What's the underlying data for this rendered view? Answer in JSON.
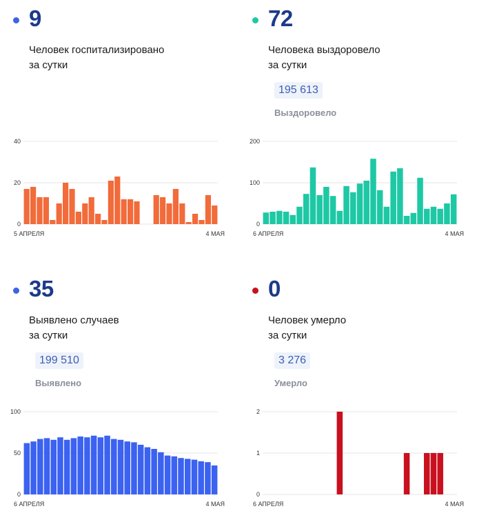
{
  "panels": [
    {
      "id": "hospitalized",
      "value": "9",
      "caption_line1": "Человек госпитализировано",
      "caption_line2": "за сутки",
      "total": null,
      "total_label": null,
      "color": "#f26b3a",
      "dot_color": "#3f63e0"
    },
    {
      "id": "recovered",
      "value": "72",
      "caption_line1": "Человека выздоровело",
      "caption_line2": "за сутки",
      "total": "195 613",
      "total_label": "Выздоровело",
      "color": "#1ec8a5",
      "dot_color": "#1ec8a5"
    },
    {
      "id": "cases",
      "value": "35",
      "caption_line1": "Выявлено случаев",
      "caption_line2": "за сутки",
      "total": "199 510",
      "total_label": "Выявлено",
      "color": "#3b62f0",
      "dot_color": "#3f63e0"
    },
    {
      "id": "deaths",
      "value": "0",
      "caption_line1": "Человек умерло",
      "caption_line2": "за сутки",
      "total": "3 276",
      "total_label": "Умерло",
      "color": "#c8101e",
      "dot_color": "#c8101e"
    }
  ],
  "chart_data": [
    {
      "type": "bar",
      "x_start_label": "5 АПРЕЛЯ",
      "x_end_label": "4 МАЯ",
      "yticks": [
        0,
        20,
        40
      ],
      "ylim": [
        0,
        40
      ],
      "values": [
        17,
        18,
        13,
        13,
        2,
        10,
        20,
        17,
        6,
        10,
        13,
        5,
        2,
        21,
        23,
        12,
        12,
        11,
        null,
        null,
        14,
        13,
        10,
        17,
        10,
        1,
        5,
        2,
        14,
        9
      ],
      "grid": true
    },
    {
      "type": "bar",
      "x_start_label": "6 АПРЕЛЯ",
      "x_end_label": "4 МАЯ",
      "yticks": [
        0,
        100,
        200
      ],
      "ylim": [
        0,
        200
      ],
      "values": [
        28,
        30,
        32,
        30,
        22,
        42,
        73,
        137,
        70,
        90,
        68,
        32,
        92,
        77,
        98,
        105,
        158,
        82,
        42,
        127,
        135,
        20,
        27,
        112,
        37,
        42,
        37,
        50,
        72
      ],
      "grid": true
    },
    {
      "type": "bar",
      "x_start_label": "6 АПРЕЛЯ",
      "x_end_label": "4 МАЯ",
      "yticks": [
        0,
        50,
        100
      ],
      "ylim": [
        0,
        100
      ],
      "values": [
        62,
        64,
        67,
        68,
        66,
        69,
        66,
        68,
        70,
        69,
        71,
        69,
        71,
        67,
        66,
        64,
        63,
        60,
        57,
        55,
        51,
        47,
        46,
        44,
        43,
        42,
        40,
        39,
        35
      ],
      "grid": true
    },
    {
      "type": "bar",
      "x_start_label": "6 АПРЕЛЯ",
      "x_end_label": "4 МАЯ",
      "yticks": [
        0,
        1,
        2
      ],
      "ylim": [
        0,
        2
      ],
      "values": [
        0,
        0,
        0,
        0,
        0,
        0,
        0,
        0,
        0,
        0,
        0,
        2,
        0,
        0,
        0,
        0,
        0,
        0,
        0,
        0,
        0,
        1,
        0,
        0,
        1,
        1,
        1,
        0,
        0
      ],
      "grid": true
    }
  ]
}
